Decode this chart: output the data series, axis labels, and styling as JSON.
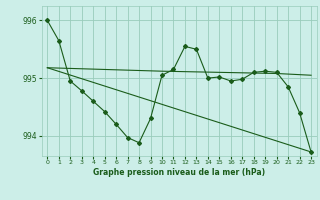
{
  "xlabel": "Graphe pression niveau de la mer (hPa)",
  "xlim": [
    -0.5,
    23.5
  ],
  "ylim": [
    993.65,
    996.25
  ],
  "yticks": [
    994,
    995,
    996
  ],
  "xticks": [
    0,
    1,
    2,
    3,
    4,
    5,
    6,
    7,
    8,
    9,
    10,
    11,
    12,
    13,
    14,
    15,
    16,
    17,
    18,
    19,
    20,
    21,
    22,
    23
  ],
  "background_color": "#cceee8",
  "grid_color": "#99ccbb",
  "line_color": "#1a5c1a",
  "line1_x": [
    0,
    1,
    2,
    3,
    4,
    5,
    6,
    7,
    8,
    9,
    10,
    11,
    12,
    13,
    14,
    15,
    16,
    17,
    18,
    19,
    20,
    21,
    22,
    23
  ],
  "line1_y": [
    996.0,
    995.65,
    994.95,
    994.78,
    994.6,
    994.42,
    994.2,
    993.97,
    993.88,
    994.3,
    995.05,
    995.15,
    995.55,
    995.5,
    995.0,
    995.02,
    994.95,
    994.98,
    995.1,
    995.12,
    995.1,
    994.85,
    994.4,
    993.72
  ],
  "line2_x": [
    0,
    10,
    20,
    23
  ],
  "line2_y": [
    995.18,
    995.12,
    995.08,
    995.05
  ],
  "line3_x": [
    0,
    23
  ],
  "line3_y": [
    995.18,
    993.72
  ]
}
